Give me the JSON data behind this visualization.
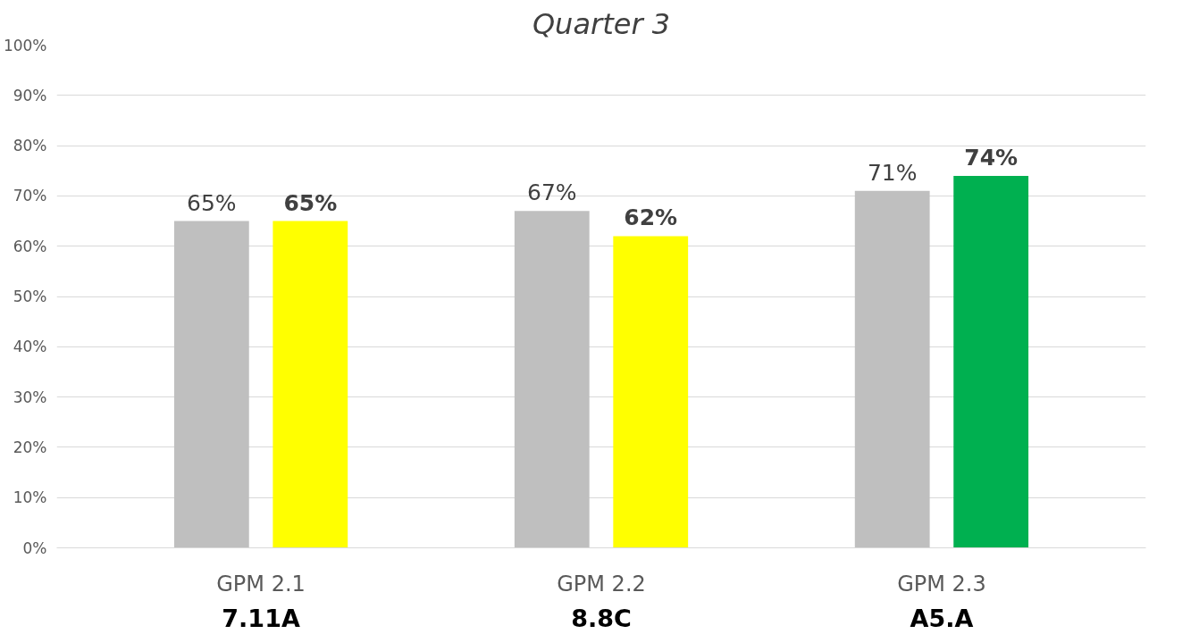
{
  "chart_data": {
    "type": "bar",
    "title": "Quarter 3",
    "categories": [
      "GPM 2.1\n7.11A",
      "GPM 2.2\n8.8C",
      "GPM 2.3\nA5.A"
    ],
    "series": [
      {
        "color": "#bfbfbf",
        "values": [
          65,
          67,
          71
        ],
        "value_labels": [
          "65%",
          "67%",
          "71%"
        ]
      },
      {
        "colors": [
          "#ffff00",
          "#ffff00",
          "#00b050"
        ],
        "values": [
          65,
          62,
          74
        ],
        "value_labels": [
          "65%",
          "62%",
          "74%"
        ]
      }
    ],
    "ylim": [
      0,
      100
    ],
    "yticks": [
      {
        "value": 0,
        "label": "0%"
      },
      {
        "value": 10,
        "label": "10%"
      },
      {
        "value": 20,
        "label": "20%"
      },
      {
        "value": 30,
        "label": "30%"
      },
      {
        "value": 40,
        "label": "40%"
      },
      {
        "value": 50,
        "label": "50%"
      },
      {
        "value": 60,
        "label": "60%"
      },
      {
        "value": 70,
        "label": "70%"
      },
      {
        "value": 80,
        "label": "80%"
      },
      {
        "value": 90,
        "label": "90%"
      },
      {
        "value": 100,
        "label": "100%"
      }
    ],
    "grid": "y"
  }
}
